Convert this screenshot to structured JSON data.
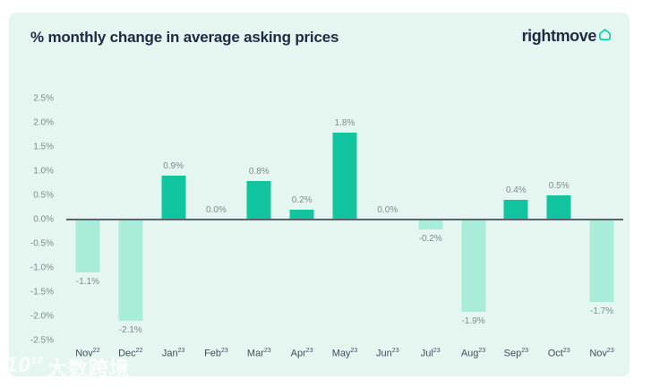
{
  "header": {
    "title": "% monthly change in average asking prices",
    "brand": "rightmove"
  },
  "colors": {
    "background": "#e4f6ef",
    "title_ink": "#1f2b44",
    "positive_bar": "#10c5a0",
    "negative_bar": "#a9ecd9",
    "axis_line": "#59636d",
    "label_gray": "#7d8a92",
    "logo_teal": "#00d2a8"
  },
  "chart_data": {
    "type": "bar",
    "title": "% monthly change in average asking prices",
    "xlabel": "",
    "ylabel": "",
    "ylim": [
      -2.5,
      2.5
    ],
    "grid": false,
    "y_ticks": [
      "2.5%",
      "2.0%",
      "1.5%",
      "1.0%",
      "0.5%",
      "0.0%",
      "-0.5%",
      "-1.0%",
      "-1.5%",
      "-2.0%",
      "-2.5%"
    ],
    "bars": [
      {
        "month": "Nov",
        "year": "22",
        "value": -1.1,
        "display": "-1.1%"
      },
      {
        "month": "Dec",
        "year": "22",
        "value": -2.1,
        "display": "-2.1%"
      },
      {
        "month": "Jan",
        "year": "23",
        "value": 0.9,
        "display": "0.9%"
      },
      {
        "month": "Feb",
        "year": "23",
        "value": 0.0,
        "display": "0.0%"
      },
      {
        "month": "Mar",
        "year": "23",
        "value": 0.8,
        "display": "0.8%"
      },
      {
        "month": "Apr",
        "year": "23",
        "value": 0.2,
        "display": "0.2%"
      },
      {
        "month": "May",
        "year": "23",
        "value": 1.8,
        "display": "1.8%"
      },
      {
        "month": "Jun",
        "year": "23",
        "value": 0.0,
        "display": "0.0%"
      },
      {
        "month": "Jul",
        "year": "23",
        "value": -0.2,
        "display": "-0.2%"
      },
      {
        "month": "Aug",
        "year": "23",
        "value": -1.9,
        "display": "-1.9%"
      },
      {
        "month": "Sep",
        "year": "23",
        "value": 0.4,
        "display": "0.4%"
      },
      {
        "month": "Oct",
        "year": "23",
        "value": 0.5,
        "display": "0.5%"
      },
      {
        "month": "Nov",
        "year": "23",
        "value": -1.7,
        "display": "-1.7%"
      }
    ]
  },
  "watermark": {
    "logo": "10",
    "logo_sup": "50",
    "text": "大数跨境"
  }
}
